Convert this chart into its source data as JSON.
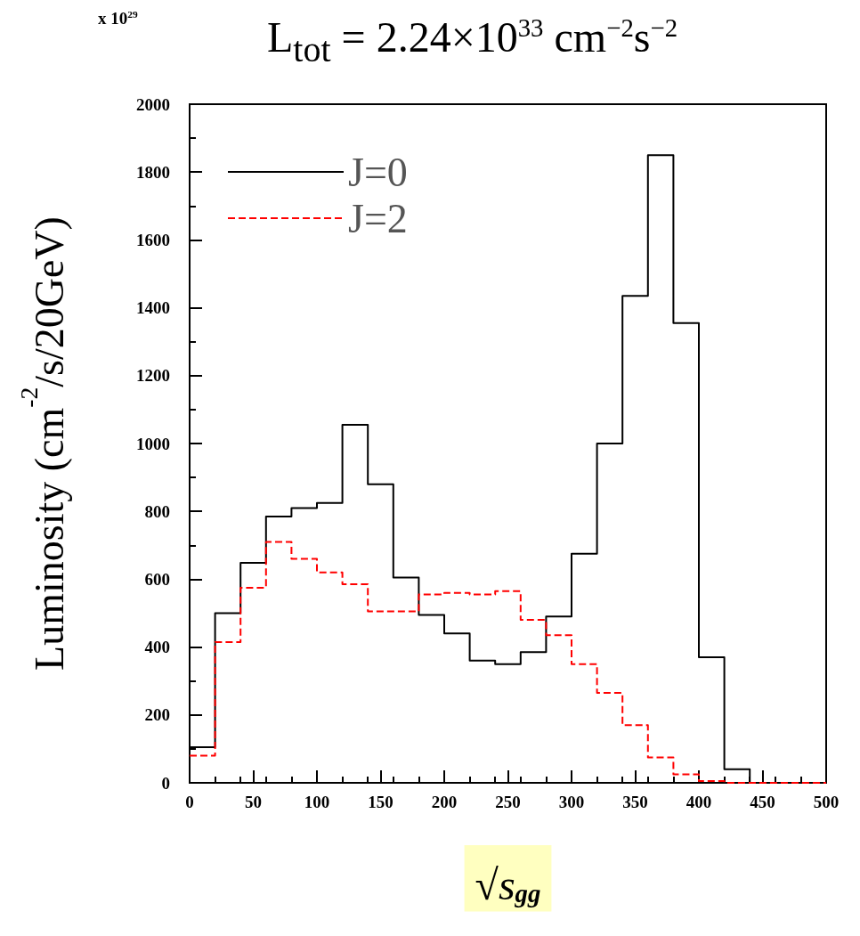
{
  "chart_data": {
    "type": "histogram",
    "title": "L$_{tot}$ = 2.24×10$^{33}$ cm$^{−2}$s$^{−2}$",
    "xlabel": "√s$_{gg}$",
    "ylabel": "Luminosity (cm$^{-2}$/s/20GeV)",
    "annotations": [
      "x 10$^{29}$"
    ],
    "bins": [
      0,
      20,
      40,
      60,
      80,
      100,
      120,
      140,
      160,
      180,
      200,
      220,
      240,
      260,
      280,
      300,
      320,
      340,
      360,
      380,
      400,
      420,
      440,
      460,
      480,
      500
    ],
    "series": [
      {
        "name": "J=0",
        "color": "#000000",
        "line_style": "solid",
        "values": [
          105,
          500,
          648,
          785,
          810,
          825,
          1055,
          880,
          605,
          495,
          440,
          360,
          350,
          385,
          490,
          675,
          1000,
          1435,
          1850,
          1355,
          370,
          40,
          0,
          0,
          0
        ]
      },
      {
        "name": "J=2",
        "color": "#ff0000",
        "line_style": "dashed",
        "values": [
          80,
          415,
          575,
          710,
          660,
          620,
          585,
          505,
          505,
          555,
          560,
          555,
          565,
          480,
          435,
          350,
          265,
          170,
          75,
          25,
          5,
          0,
          0,
          0,
          0
        ]
      }
    ],
    "xlim": [
      0,
      500
    ],
    "xticks": [
      0,
      50,
      100,
      150,
      200,
      250,
      300,
      350,
      400,
      450,
      500
    ],
    "ylim": [
      0,
      2000
    ],
    "yticks": [
      0,
      200,
      400,
      600,
      800,
      1000,
      1200,
      1400,
      1600,
      1800,
      2000
    ],
    "grid": false,
    "legend": "top left"
  }
}
